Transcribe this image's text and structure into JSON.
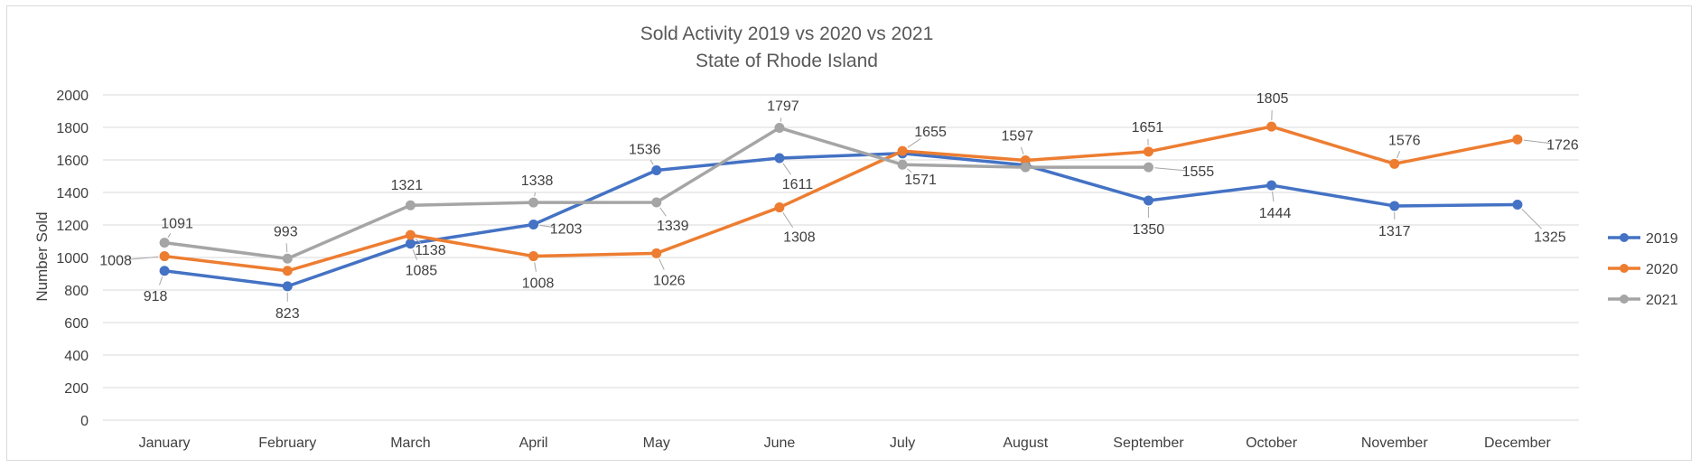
{
  "chart_data": {
    "type": "line",
    "title": "Sold Activity 2019 vs 2020 vs 2021",
    "subtitle": "State of Rhode Island",
    "xlabel": "",
    "ylabel": "Number Sold",
    "ylim": [
      0,
      2000
    ],
    "yticks": [
      "0",
      "200",
      "400",
      "600",
      "800",
      "1000",
      "1200",
      "1400",
      "1600",
      "1800",
      "2000"
    ],
    "grid": true,
    "legend_position": "right",
    "categories": [
      "January",
      "February",
      "March",
      "April",
      "May",
      "June",
      "July",
      "August",
      "September",
      "October",
      "November",
      "December"
    ],
    "series": [
      {
        "name": "2019",
        "color": "#4472C4",
        "values": [
          918,
          823,
          1085,
          1203,
          1536,
          1611,
          1640,
          1568,
          1350,
          1444,
          1317,
          1325
        ],
        "labels": [
          "918",
          "823",
          "1085",
          "1203",
          "1536",
          "1611",
          "",
          "",
          "1350",
          "1444",
          "1317",
          "1325"
        ]
      },
      {
        "name": "2020",
        "color": "#ED7D31",
        "values": [
          1008,
          918,
          1138,
          1008,
          1026,
          1308,
          1655,
          1597,
          1651,
          1805,
          1576,
          1726
        ],
        "labels": [
          "1008",
          "",
          "1138",
          "1008",
          "1026",
          "1308",
          "1655",
          "1597",
          "1651",
          "1805",
          "1576",
          "1726"
        ]
      },
      {
        "name": "2021",
        "color": "#A5A5A5",
        "values": [
          1091,
          993,
          1321,
          1338,
          1339,
          1797,
          1571,
          1555,
          1555,
          null,
          null,
          null
        ],
        "labels": [
          "1091",
          "993",
          "1321",
          "1338",
          "1339",
          "1797",
          "1571",
          "",
          "1555",
          "",
          "",
          ""
        ]
      }
    ]
  }
}
